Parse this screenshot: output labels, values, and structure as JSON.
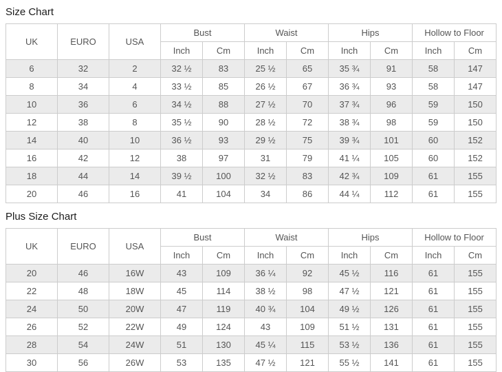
{
  "colors": {
    "row_stripe": "#ebebeb",
    "table_border": "#cccccc",
    "cell_text": "#555555",
    "title_text": "#1c1c1c",
    "page_background": "#ffffff"
  },
  "chart_data": [
    {
      "type": "table",
      "title": "Size Chart",
      "header": {
        "simple_cols": [
          "UK",
          "EURO",
          "USA"
        ],
        "groups": [
          "Bust",
          "Waist",
          "Hips",
          "Hollow to Floor"
        ],
        "subunits": [
          "Inch",
          "Cm"
        ]
      },
      "columns_flat": [
        "UK",
        "EURO",
        "USA",
        "Bust Inch",
        "Bust Cm",
        "Waist Inch",
        "Waist Cm",
        "Hips Inch",
        "Hips Cm",
        "Hollow to Floor Inch",
        "Hollow to Floor Cm"
      ],
      "rows": [
        [
          "6",
          "32",
          "2",
          "32 ½",
          "83",
          "25 ½",
          "65",
          "35 ¾",
          "91",
          "58",
          "147"
        ],
        [
          "8",
          "34",
          "4",
          "33 ½",
          "85",
          "26 ½",
          "67",
          "36 ¾",
          "93",
          "58",
          "147"
        ],
        [
          "10",
          "36",
          "6",
          "34 ½",
          "88",
          "27 ½",
          "70",
          "37 ¾",
          "96",
          "59",
          "150"
        ],
        [
          "12",
          "38",
          "8",
          "35 ½",
          "90",
          "28 ½",
          "72",
          "38 ¾",
          "98",
          "59",
          "150"
        ],
        [
          "14",
          "40",
          "10",
          "36 ½",
          "93",
          "29 ½",
          "75",
          "39 ¾",
          "101",
          "60",
          "152"
        ],
        [
          "16",
          "42",
          "12",
          "38",
          "97",
          "31",
          "79",
          "41 ¼",
          "105",
          "60",
          "152"
        ],
        [
          "18",
          "44",
          "14",
          "39 ½",
          "100",
          "32 ½",
          "83",
          "42 ¾",
          "109",
          "61",
          "155"
        ],
        [
          "20",
          "46",
          "16",
          "41",
          "104",
          "34",
          "86",
          "44 ¼",
          "112",
          "61",
          "155"
        ]
      ]
    },
    {
      "type": "table",
      "title": "Plus Size Chart",
      "header": {
        "simple_cols": [
          "UK",
          "EURO",
          "USA"
        ],
        "groups": [
          "Bust",
          "Waist",
          "Hips",
          "Hollow to Floor"
        ],
        "subunits": [
          "Inch",
          "Cm"
        ]
      },
      "columns_flat": [
        "UK",
        "EURO",
        "USA",
        "Bust Inch",
        "Bust Cm",
        "Waist Inch",
        "Waist Cm",
        "Hips Inch",
        "Hips Cm",
        "Hollow to Floor Inch",
        "Hollow to Floor Cm"
      ],
      "rows": [
        [
          "20",
          "46",
          "16W",
          "43",
          "109",
          "36 ¼",
          "92",
          "45 ½",
          "116",
          "61",
          "155"
        ],
        [
          "22",
          "48",
          "18W",
          "45",
          "114",
          "38 ½",
          "98",
          "47 ½",
          "121",
          "61",
          "155"
        ],
        [
          "24",
          "50",
          "20W",
          "47",
          "119",
          "40 ¾",
          "104",
          "49 ½",
          "126",
          "61",
          "155"
        ],
        [
          "26",
          "52",
          "22W",
          "49",
          "124",
          "43",
          "109",
          "51 ½",
          "131",
          "61",
          "155"
        ],
        [
          "28",
          "54",
          "24W",
          "51",
          "130",
          "45 ¼",
          "115",
          "53 ½",
          "136",
          "61",
          "155"
        ],
        [
          "30",
          "56",
          "26W",
          "53",
          "135",
          "47 ½",
          "121",
          "55 ½",
          "141",
          "61",
          "155"
        ]
      ]
    }
  ]
}
